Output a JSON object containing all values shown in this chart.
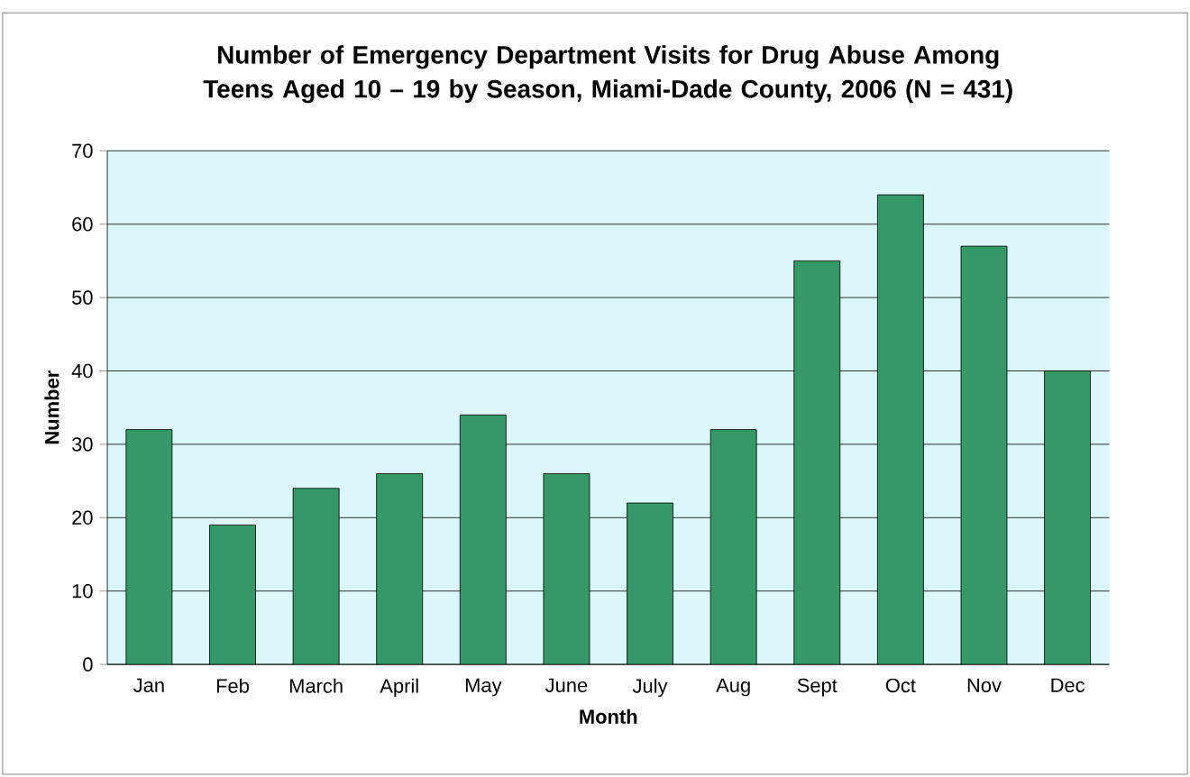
{
  "chart_data": {
    "type": "bar",
    "title": "Number of Emergency Department Visits for Drug Abuse Among Teens Aged 10 – 19  by Season, Miami-Dade County, 2006 (N = 431)",
    "xlabel": "Month",
    "ylabel": "Number",
    "categories": [
      "Jan",
      "Feb",
      "March",
      "April",
      "May",
      "June",
      "July",
      "Aug",
      "Sept",
      "Oct",
      "Nov",
      "Dec"
    ],
    "values": [
      32,
      19,
      24,
      26,
      34,
      26,
      22,
      32,
      55,
      64,
      57,
      40
    ],
    "color": "#339966",
    "ylim": [
      0,
      70
    ],
    "yticks": [
      0,
      10,
      20,
      30,
      40,
      50,
      60,
      70
    ],
    "grid": "y"
  }
}
